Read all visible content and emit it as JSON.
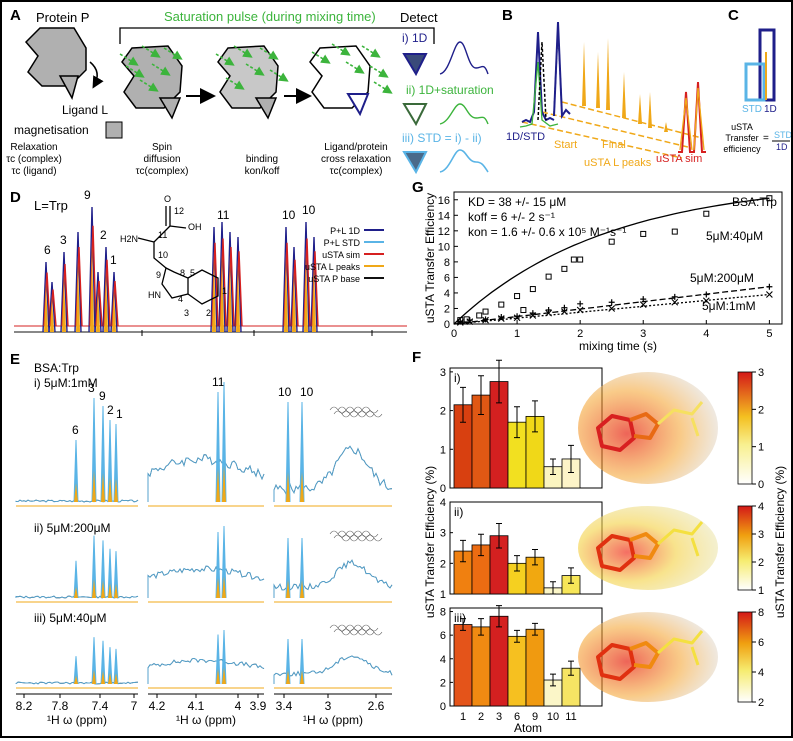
{
  "panels": {
    "A": {
      "letter": "A",
      "protein_label": "Protein P",
      "pulse_label": "Saturation pulse (during mixing time)",
      "ligand_label": "Ligand L",
      "magnetisation_label": "magnetisation",
      "relaxation_title": "Relaxation",
      "relaxation_line1": "τc (complex)",
      "relaxation_line2": "τc (ligand)",
      "spin_title": "Spin",
      "spin_line1": "diffusion",
      "spin_line2": "τc(complex)",
      "binding_title": "binding",
      "binding_line1": "kon/koff",
      "cross_title": "Ligand/protein",
      "cross_line1": "cross relaxation",
      "cross_line2": "τc(complex)",
      "detect_title": "Detect",
      "detect_1d": "i) 1D",
      "detect_sat": "ii) 1D+saturation",
      "detect_std": "iii) STD = i) - ii)"
    },
    "B": {
      "letter": "B",
      "label_1d_std": "1D/STD",
      "label_start": "Start",
      "label_final": "Final",
      "label_usta_l": "uSTA L peaks",
      "label_usta_sim": "uSTA sim"
    },
    "C": {
      "letter": "C",
      "std_label": "STD",
      "d1_label": "1D",
      "ustaa": "uSTA",
      "transfer": "Transfer",
      "efficiency": "efficiency",
      "eq": "=",
      "frac_num": "STD",
      "frac_den": "1D"
    },
    "D": {
      "letter": "D",
      "title": "L=Trp",
      "legend": [
        {
          "label": "P+L 1D",
          "color": "#1f1f8a"
        },
        {
          "label": "P+L STD",
          "color": "#5ab4e6"
        },
        {
          "label": "uSTA sim",
          "color": "#d62020"
        },
        {
          "label": "uSTA L peaks",
          "color": "#f0a818"
        },
        {
          "label": "uSTA P base",
          "color": "#111111"
        }
      ],
      "peak_labels": [
        "6",
        "3",
        "9",
        "2",
        "1",
        "11",
        "10",
        "10"
      ],
      "structure_labels": [
        "12",
        "OH",
        "O",
        "11",
        "H2N",
        "10",
        "9",
        "8",
        "5",
        "4",
        "HN",
        "1",
        "2",
        "3"
      ]
    },
    "E": {
      "letter": "E",
      "title": "BSA:Trp",
      "rows": [
        "i) 5μM:1mM",
        "ii) 5μM:200μM",
        "iii) 5μM:40μM"
      ],
      "peak_labels": [
        "6",
        "3",
        "9",
        "2",
        "1",
        "11",
        "10",
        "10"
      ],
      "axis1_ticks": [
        "8.2",
        "7.8",
        "7.4",
        "7"
      ],
      "axis2_ticks": [
        "4.2",
        "4.1",
        "4",
        "3.9"
      ],
      "axis3_ticks": [
        "3.4",
        "3",
        "2.6"
      ],
      "axis_label": "¹H ω (ppm)"
    },
    "F": {
      "letter": "F",
      "rows": [
        "i)",
        "ii)",
        "iii)"
      ],
      "ylabel": "uSTA Transfer Efficiency (%)",
      "xlabel": "Atom",
      "cbar_label": "uSTA Transfer Efficiency (%)",
      "cbar_ticks": [
        [
          "3",
          "2",
          "1",
          "0"
        ],
        [
          "4",
          "3",
          "2",
          "1"
        ],
        [
          "8",
          "6",
          "4",
          "2"
        ]
      ]
    },
    "G": {
      "letter": "G",
      "param1": "KD = 38 +/- 15 μM",
      "param2": "koff = 6 +/- 2 s⁻¹",
      "param3": "kon = 1.6 +/- 0.6 x 10⁵ M⁻¹s⁻¹",
      "series_title": "BSA:Trp",
      "label_40": "5μM:40μM",
      "label_200": "5μM:200μM",
      "label_1m": "5μM:1mM"
    }
  },
  "chart_data": [
    {
      "type": "scatter",
      "panel": "G",
      "xlabel": "mixing time (s)",
      "ylabel": "uSTA Transfer Efficiency",
      "xlim": [
        0,
        5.2
      ],
      "ylim": [
        0,
        17
      ],
      "xticks": [
        0,
        1,
        2,
        3,
        4,
        5
      ],
      "yticks": [
        0,
        2,
        4,
        6,
        8,
        10,
        12,
        14,
        16
      ],
      "series": [
        {
          "name": "5μM:40μM",
          "marker": "square",
          "line": "solid",
          "x": [
            0.1,
            0.2,
            0.4,
            0.5,
            0.75,
            1.0,
            1.1,
            1.25,
            1.5,
            1.75,
            1.9,
            2.0,
            2.5,
            3.0,
            3.5,
            4.0,
            5.0
          ],
          "y": [
            0.5,
            0.6,
            1.1,
            1.6,
            2.5,
            3.6,
            1.8,
            4.5,
            6.1,
            7.1,
            8.3,
            8.3,
            10.6,
            11.6,
            11.9,
            14.2,
            16.2
          ]
        },
        {
          "name": "5μM:200μM",
          "marker": "plus",
          "line": "dashed",
          "x": [
            0.1,
            0.25,
            0.5,
            0.75,
            1.0,
            1.25,
            1.5,
            1.75,
            2.0,
            2.5,
            3.0,
            3.5,
            4.0,
            5.0
          ],
          "y": [
            0.3,
            0.5,
            0.6,
            0.9,
            1.0,
            1.4,
            1.8,
            2.1,
            2.6,
            2.8,
            3.2,
            3.5,
            3.8,
            4.8
          ]
        },
        {
          "name": "5μM:1mM",
          "marker": "x",
          "line": "dotted",
          "x": [
            0.1,
            0.25,
            0.5,
            0.75,
            1.0,
            1.25,
            1.5,
            1.75,
            2.0,
            2.5,
            3.0,
            3.5,
            4.0,
            5.0
          ],
          "y": [
            0.2,
            0.3,
            0.5,
            0.7,
            0.8,
            1.1,
            1.4,
            1.6,
            1.8,
            2.0,
            2.5,
            2.8,
            3.0,
            3.8
          ]
        }
      ]
    },
    {
      "type": "bar",
      "panel": "F-i",
      "categories": [
        "1",
        "2",
        "3",
        "6",
        "9",
        "10",
        "11"
      ],
      "values": [
        2.15,
        2.4,
        2.75,
        1.7,
        1.85,
        0.55,
        0.75
      ],
      "errors": [
        0.45,
        0.5,
        0.55,
        0.4,
        0.4,
        0.2,
        0.35
      ],
      "colors": [
        "#d84010",
        "#e05814",
        "#d42020",
        "#f2e020",
        "#f0d818",
        "#fbf5c0",
        "#fdf4c8"
      ],
      "ylim": [
        0,
        3.1
      ],
      "yticks": [
        0,
        1,
        2,
        3
      ]
    },
    {
      "type": "bar",
      "panel": "F-ii",
      "categories": [
        "1",
        "2",
        "3",
        "6",
        "9",
        "10",
        "11"
      ],
      "values": [
        2.4,
        2.6,
        2.9,
        2.0,
        2.2,
        1.2,
        1.6
      ],
      "errors": [
        0.35,
        0.35,
        0.4,
        0.25,
        0.25,
        0.2,
        0.25
      ],
      "colors": [
        "#f08010",
        "#ec6c12",
        "#d42020",
        "#f5d020",
        "#f1a810",
        "#fbf6c8",
        "#f7e658"
      ],
      "ylim": [
        1,
        4
      ],
      "yticks": [
        1,
        2,
        3,
        4
      ]
    },
    {
      "type": "bar",
      "panel": "F-iii",
      "categories": [
        "1",
        "2",
        "3",
        "6",
        "9",
        "10",
        "11"
      ],
      "values": [
        6.9,
        6.7,
        7.6,
        5.9,
        6.5,
        2.2,
        3.2
      ],
      "errors": [
        0.5,
        0.7,
        0.9,
        0.5,
        0.5,
        0.5,
        0.6
      ],
      "colors": [
        "#e4541a",
        "#f08a12",
        "#d42020",
        "#f6c020",
        "#f09a10",
        "#fbf6c8",
        "#f6e464"
      ],
      "ylim": [
        0,
        8.3
      ],
      "yticks": [
        0,
        2,
        4,
        6,
        8
      ]
    }
  ]
}
